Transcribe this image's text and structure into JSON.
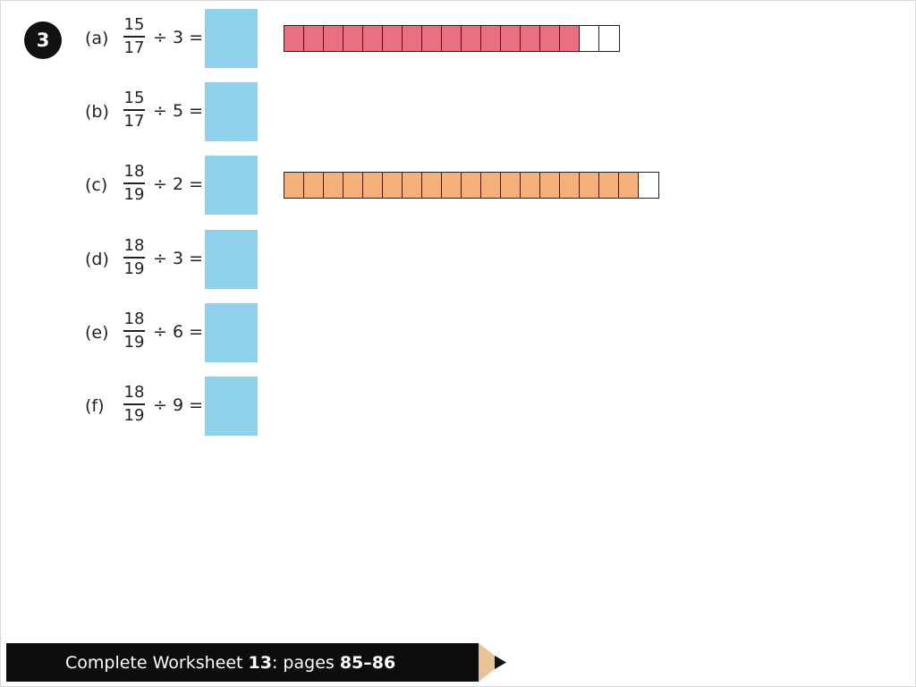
{
  "question_number": "3",
  "parts": [
    {
      "label": "(a)",
      "numerator": "15",
      "denominator": "17",
      "operation": "÷ 3 =",
      "strip": {
        "filled": 15,
        "total": 17,
        "color": "#e9707e"
      }
    },
    {
      "label": "(b)",
      "numerator": "15",
      "denominator": "17",
      "operation": "÷ 5 =",
      "strip": null
    },
    {
      "label": "(c)",
      "numerator": "18",
      "denominator": "19",
      "operation": "÷ 2 =",
      "strip": {
        "filled": 18,
        "total": 19,
        "color": "#f5b07d"
      }
    },
    {
      "label": "(d)",
      "numerator": "18",
      "denominator": "19",
      "operation": "÷ 3 =",
      "strip": null
    },
    {
      "label": "(e)",
      "numerator": "18",
      "denominator": "19",
      "operation": "÷ 6 =",
      "strip": null
    },
    {
      "label": "(f)",
      "numerator": "18",
      "denominator": "19",
      "operation": "÷ 9 =",
      "strip": null
    }
  ],
  "colors": {
    "answer_box": "#8fd0ea",
    "pencil_wood": "#e8c39a",
    "footer_bg": "#0d0d0d"
  },
  "footer": {
    "prefix": "Complete Worksheet ",
    "worksheet": "13",
    "middle": ": pages ",
    "pages": "85–86"
  }
}
